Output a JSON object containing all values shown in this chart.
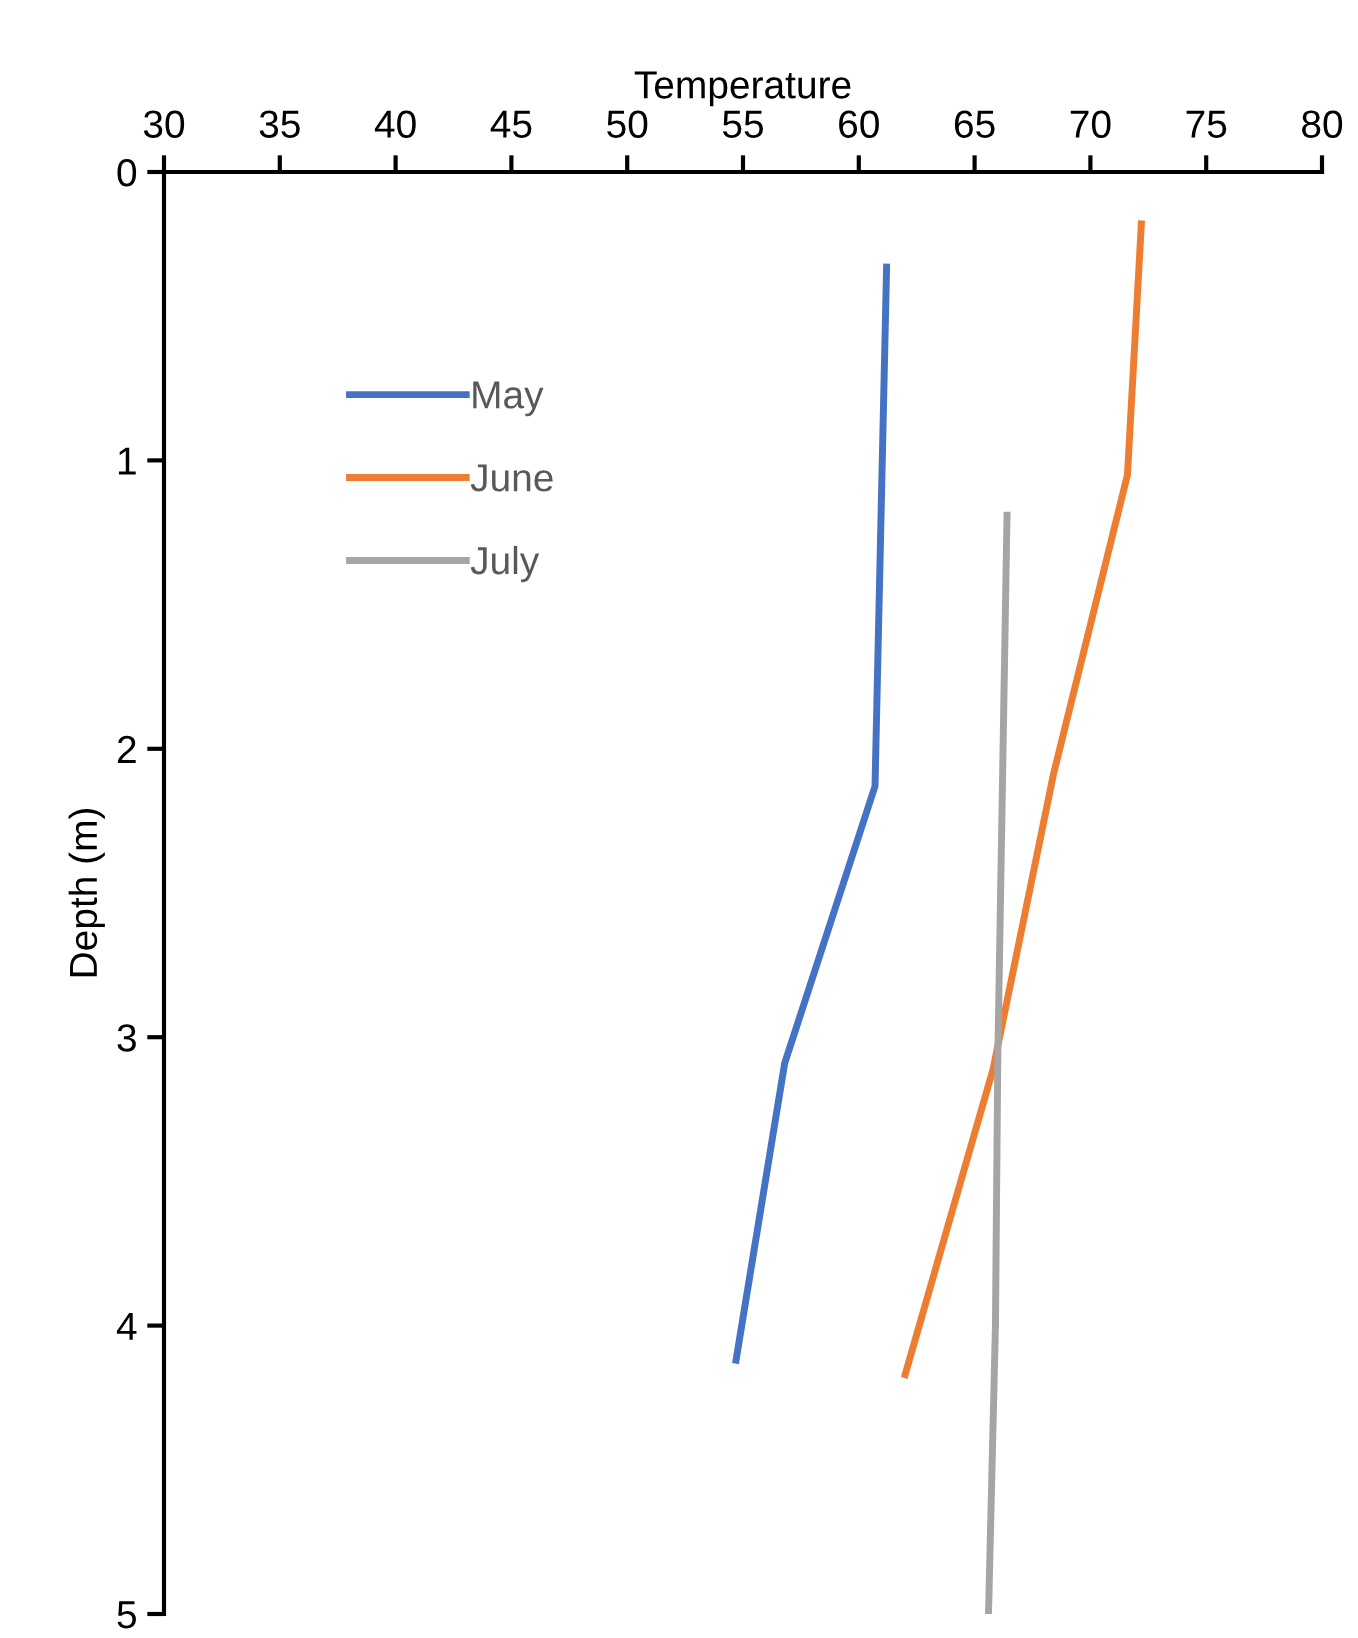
{
  "chart_data": {
    "type": "line",
    "xlabel": "Temperature",
    "ylabel": "Depth (m)",
    "xlim": [
      30,
      80
    ],
    "xticks": [
      30,
      35,
      40,
      45,
      50,
      55,
      60,
      65,
      70,
      75,
      80
    ],
    "ylim": [
      5,
      0
    ],
    "yticks": [
      0,
      1,
      2,
      3,
      4,
      5
    ],
    "grid": false,
    "legend": "top left",
    "marker": "none",
    "line_style": "solid",
    "series": [
      {
        "name": "May",
        "color": "#4472c4",
        "x": [
          61.2,
          60.7,
          56.8,
          54.7
        ],
        "values": [
          0.33,
          2.13,
          3.09,
          4.12
        ]
      },
      {
        "name": "June",
        "color": "#ed7d31",
        "x": [
          72.2,
          71.6,
          68.4,
          65.8,
          62.0
        ],
        "values": [
          0.18,
          1.05,
          2.09,
          3.11,
          4.17
        ]
      },
      {
        "name": "July",
        "color": "#a5a5a5",
        "x": [
          66.4,
          66.0,
          65.9,
          65.6
        ],
        "values": [
          1.19,
          3.08,
          4.0,
          5.0
        ]
      }
    ]
  }
}
